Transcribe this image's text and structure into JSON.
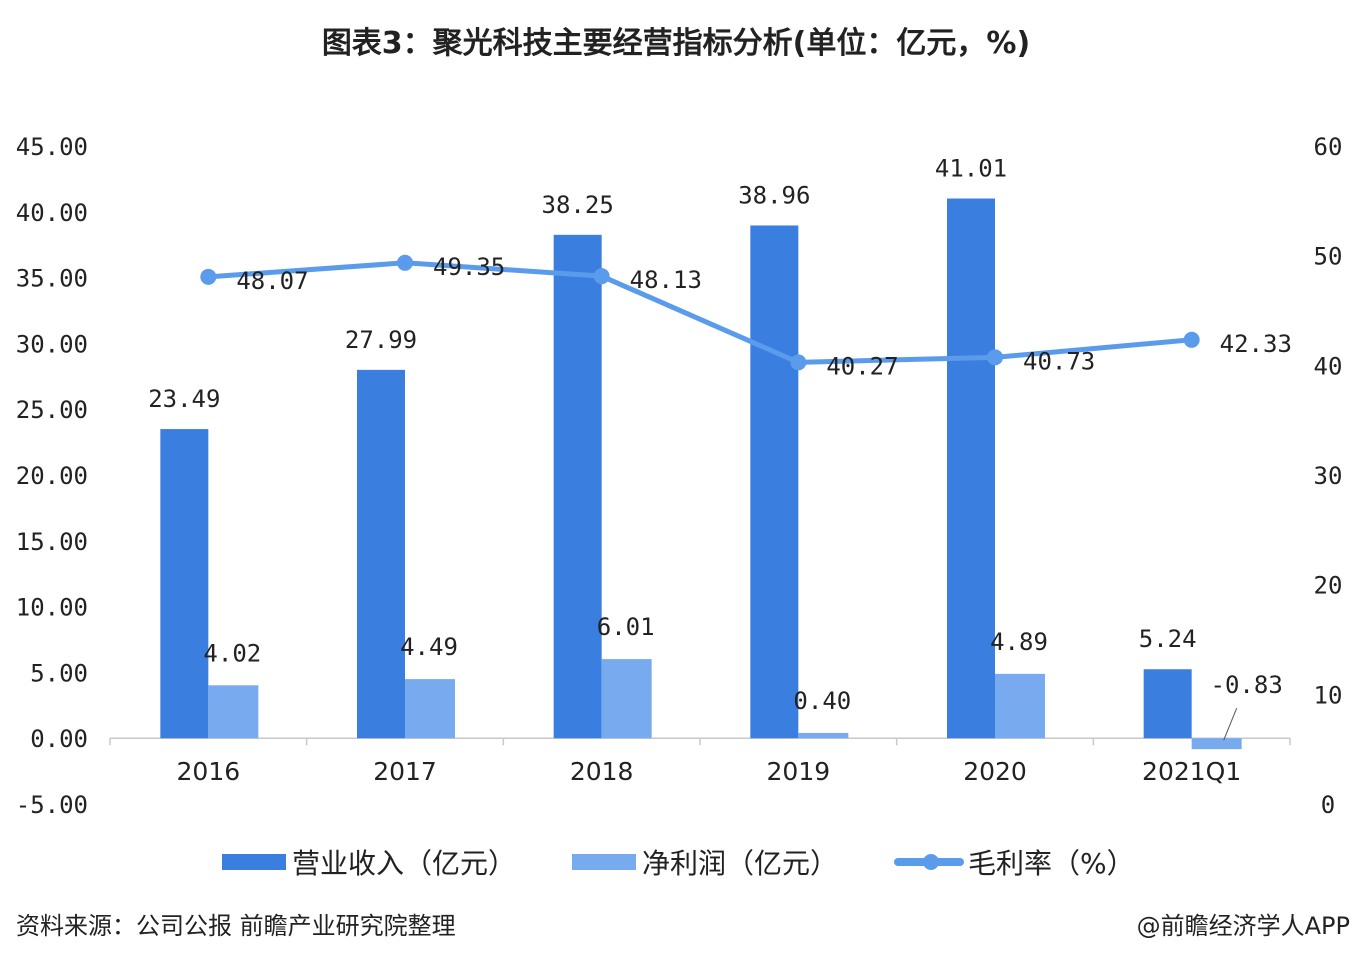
{
  "title": "图表3：聚光科技主要经营指标分析(单位：亿元，%)",
  "chart_data": {
    "type": "bar+line",
    "categories": [
      "2016",
      "2017",
      "2018",
      "2019",
      "2020",
      "2021Q1"
    ],
    "series": [
      {
        "name": "营业收入（亿元）",
        "type": "bar",
        "axis": "left",
        "color": "#3a7fe0",
        "values": [
          23.49,
          27.99,
          38.25,
          38.96,
          41.01,
          5.24
        ],
        "labels": [
          "23.49",
          "27.99",
          "38.25",
          "38.96",
          "41.01",
          "5.24"
        ]
      },
      {
        "name": "净利润（亿元）",
        "type": "bar",
        "axis": "left",
        "color": "#78aaf0",
        "values": [
          4.02,
          4.49,
          6.01,
          0.4,
          4.89,
          -0.83
        ],
        "labels": [
          "4.02",
          "4.49",
          "6.01",
          "0.40",
          "4.89",
          "-0.83"
        ]
      },
      {
        "name": "毛利率（%）",
        "type": "line",
        "axis": "right",
        "color": "#5b9bec",
        "values": [
          48.07,
          49.35,
          48.13,
          40.27,
          40.73,
          42.33
        ],
        "labels": [
          "48.07",
          "49.35",
          "48.13",
          "40.27",
          "40.73",
          "42.33"
        ]
      }
    ],
    "left_axis": {
      "ylim": [
        -5,
        45
      ],
      "ticks": [
        "45.00",
        "40.00",
        "35.00",
        "30.00",
        "25.00",
        "20.00",
        "15.00",
        "10.00",
        "5.00",
        "0.00",
        "-5.00"
      ]
    },
    "right_axis": {
      "ylim": [
        0,
        60
      ],
      "ticks": [
        "60",
        "50",
        "40",
        "30",
        "20",
        "10",
        "0"
      ]
    },
    "grid": false,
    "legend": "bottom"
  },
  "source": "资料来源：公司公报 前瞻产业研究院整理",
  "credit": "@前瞻经济学人APP"
}
